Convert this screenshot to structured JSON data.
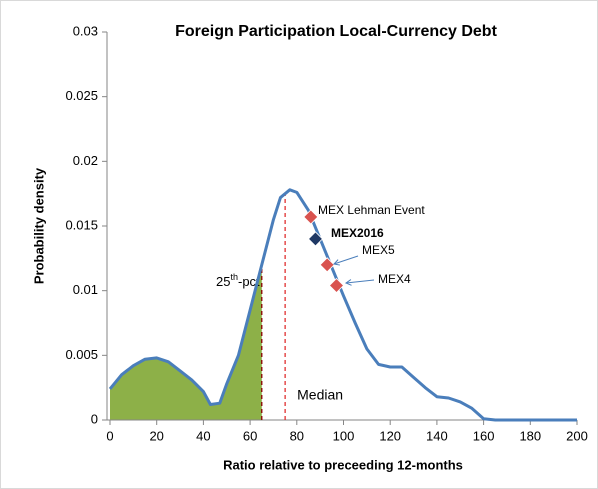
{
  "chart_data": {
    "type": "line",
    "title": "Foreign Participation Local-Currency Debt",
    "xlabel": "Ratio relative to preceeding 12-months",
    "ylabel": "Probability density",
    "x": [
      0,
      5,
      10,
      15,
      20,
      25,
      30,
      35,
      40,
      43,
      47,
      50,
      55,
      60,
      65,
      70,
      73,
      77,
      80,
      85,
      90,
      95,
      100,
      105,
      110,
      115,
      120,
      125,
      130,
      135,
      140,
      145,
      150,
      155,
      160,
      165,
      200
    ],
    "series": [
      {
        "color": "#4a7ebb",
        "values": [
          0.0024,
          0.0035,
          0.0042,
          0.0047,
          0.0048,
          0.0045,
          0.0038,
          0.0031,
          0.0022,
          0.0012,
          0.0013,
          0.0028,
          0.005,
          0.0085,
          0.012,
          0.0155,
          0.0172,
          0.0178,
          0.0176,
          0.0162,
          0.014,
          0.0118,
          0.0096,
          0.0075,
          0.0055,
          0.0043,
          0.0041,
          0.0041,
          0.0033,
          0.0025,
          0.0018,
          0.0017,
          0.0014,
          0.0009,
          0.0001,
          0,
          0
        ]
      }
    ],
    "shade_color": "#8db048",
    "vlines": [
      {
        "x": 65,
        "color": "#8b0000",
        "label_parts": [
          "25",
          "th",
          "-pct"
        ]
      },
      {
        "x": 75,
        "color": "#e03030",
        "label": "Median"
      }
    ],
    "points": [
      {
        "name": "MEX Lehman Event",
        "x": 86,
        "y": 0.0157,
        "color": "#d9534f",
        "label_color": "#000000"
      },
      {
        "name": "MEX2016",
        "x": 88,
        "y": 0.014,
        "color": "#1f3864",
        "label_color": "#ff0000"
      },
      {
        "name": "MEX5",
        "x": 93,
        "y": 0.012,
        "color": "#d9534f",
        "label_color": "#ff0000"
      },
      {
        "name": "MEX4",
        "x": 97,
        "y": 0.0104,
        "color": "#d9534f",
        "label_color": "#000000"
      }
    ],
    "xlim": [
      0,
      200
    ],
    "xticks": [
      0,
      20,
      40,
      60,
      80,
      100,
      120,
      140,
      160,
      180,
      200
    ],
    "ylim": [
      0,
      0.03
    ],
    "yticks": [
      0,
      0.005,
      0.01,
      0.015,
      0.02,
      0.025,
      0.03
    ]
  }
}
